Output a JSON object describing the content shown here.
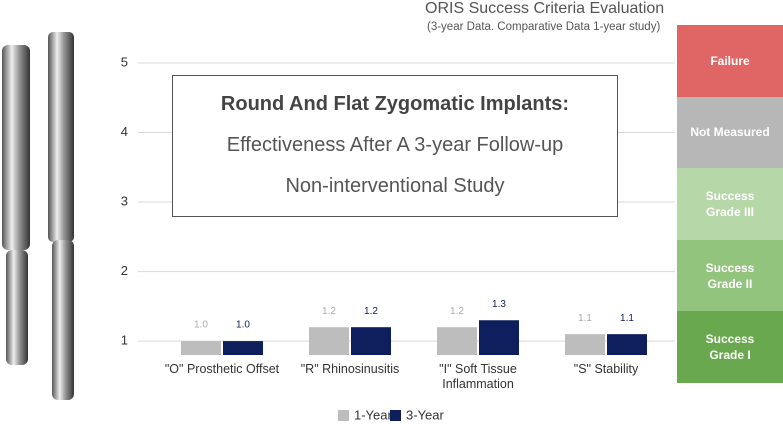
{
  "chart_data": {
    "type": "bar",
    "title": "ORIS Success Criteria Evaluation",
    "subtitle": "(3-year Data. Comparative Data 1-year study)",
    "categories": [
      "\"O\" Prosthetic Offset",
      "\"R\" Rhinosinusitis",
      "\"I\" Soft Tissue Inflammation",
      "\"S\" Stability"
    ],
    "series": [
      {
        "name": "1-Year",
        "color": "#bdbdbd",
        "values": [
          1.0,
          1.2,
          1.2,
          1.1
        ],
        "value_labels": [
          "1.0",
          "1.2",
          "1.2",
          "1.1"
        ]
      },
      {
        "name": "3-Year",
        "color": "#0d1f5c",
        "values": [
          1.0,
          1.2,
          1.3,
          1.1
        ],
        "value_labels": [
          "1.0",
          "1.2",
          "1.3",
          "1.1"
        ]
      }
    ],
    "ylim": [
      0.8,
      5
    ],
    "yticks": [
      1,
      2,
      3,
      4,
      5
    ],
    "grid": true,
    "legend": "bottom",
    "annotations": [
      "Round And Flat Zygomatic Implants:",
      "Effectiveness After A 3-year Follow-up",
      "Non-interventional Study"
    ],
    "scale_panels": [
      {
        "label": "Failure",
        "color": "#e06666"
      },
      {
        "label": "Not Measured",
        "color": "#b7b7b7"
      },
      {
        "label": "Success Grade III",
        "color": "#b6d7a8"
      },
      {
        "label": "Success Grade II",
        "color": "#93c47d"
      },
      {
        "label": "Success Grade I",
        "color": "#6aa84f"
      }
    ]
  }
}
